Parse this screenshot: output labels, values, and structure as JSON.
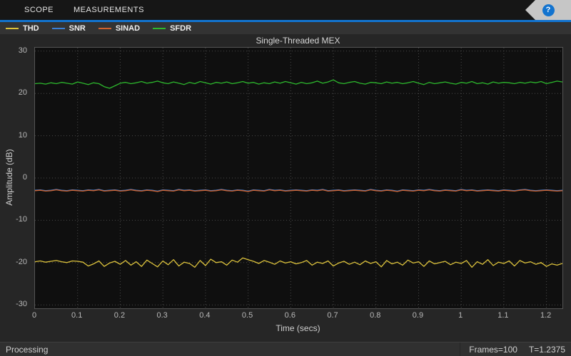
{
  "toolbar": {
    "tabs": [
      {
        "label": "SCOPE"
      },
      {
        "label": "MEASUREMENTS"
      }
    ],
    "help_label": "?",
    "accent_color": "#1273cf"
  },
  "legend": {
    "items": [
      {
        "label": "THD",
        "color": "#dcc23c"
      },
      {
        "label": "SNR",
        "color": "#3a7fd5"
      },
      {
        "label": "SINAD",
        "color": "#d0622e"
      },
      {
        "label": "SFDR",
        "color": "#2db82d"
      }
    ]
  },
  "statusbar": {
    "left": "Processing",
    "frames": "Frames=100",
    "time": "T=1.2375"
  },
  "chart_data": {
    "type": "line",
    "title": "Single-Threaded MEX",
    "xlabel": "Time (secs)",
    "ylabel": "Amplitude (dB)",
    "xlim": [
      0,
      1.2375
    ],
    "ylim": [
      -30.8,
      30.8
    ],
    "xticks": [
      0,
      0.1,
      0.2,
      0.3,
      0.4,
      0.5,
      0.6,
      0.7,
      0.8,
      0.9,
      1,
      1.1,
      1.2
    ],
    "xtick_labels": [
      "0",
      "0.1",
      "0.2",
      "0.3",
      "0.4",
      "0.5",
      "0.6",
      "0.7",
      "0.8",
      "0.9",
      "1",
      "1.1",
      "1.2"
    ],
    "yticks": [
      -30,
      -20,
      -10,
      0,
      10,
      20,
      30
    ],
    "ytick_labels": [
      "-30",
      "-20",
      "-10",
      "0",
      "10",
      "20",
      "30"
    ],
    "grid": true,
    "x_start": 0,
    "x_step": 0.0125,
    "series": [
      {
        "name": "SNR",
        "color": "#3a7fd5",
        "values": [
          -2.9,
          -2.8,
          -3.0,
          -2.9,
          -2.7,
          -2.9,
          -3.0,
          -2.8,
          -2.9,
          -3.0,
          -2.8,
          -2.9,
          -2.7,
          -3.0,
          -2.9,
          -2.8,
          -3.0,
          -2.9,
          -2.7,
          -2.9,
          -3.0,
          -2.8,
          -2.9,
          -3.1,
          -2.8,
          -2.9,
          -3.0,
          -2.7,
          -2.9,
          -2.8,
          -3.0,
          -2.9,
          -2.8,
          -3.0,
          -2.9,
          -2.7,
          -2.9,
          -3.0,
          -2.8,
          -2.9,
          -3.1,
          -2.8,
          -2.9,
          -3.0,
          -2.7,
          -2.9,
          -2.8,
          -3.0,
          -2.9,
          -2.8,
          -2.9,
          -3.0,
          -2.8,
          -2.9,
          -2.7,
          -3.0,
          -2.9,
          -2.8,
          -3.0,
          -2.9,
          -2.8,
          -2.9,
          -3.0,
          -2.7,
          -2.9,
          -3.0,
          -2.8,
          -2.9,
          -3.1,
          -2.8,
          -2.9,
          -3.0,
          -2.8,
          -2.9,
          -2.7,
          -2.9,
          -3.0,
          -2.8,
          -2.9,
          -3.0,
          -2.7,
          -2.9,
          -2.8,
          -3.0,
          -2.9,
          -2.8,
          -2.9,
          -3.0,
          -2.8,
          -2.9,
          -3.0,
          -2.8,
          -2.7,
          -2.9,
          -3.0,
          -2.9,
          -2.8,
          -2.9,
          -3.0,
          -2.9
        ]
      },
      {
        "name": "SINAD",
        "color": "#d0622e",
        "values": [
          -3.0,
          -2.9,
          -3.1,
          -3.0,
          -2.8,
          -3.0,
          -3.1,
          -2.9,
          -3.0,
          -3.1,
          -2.9,
          -3.0,
          -2.8,
          -3.1,
          -3.0,
          -2.9,
          -3.1,
          -3.0,
          -2.8,
          -3.0,
          -3.1,
          -2.9,
          -3.0,
          -3.2,
          -2.9,
          -3.0,
          -3.1,
          -2.8,
          -3.0,
          -2.9,
          -3.1,
          -3.0,
          -2.9,
          -3.1,
          -3.0,
          -2.8,
          -3.0,
          -3.1,
          -2.9,
          -3.0,
          -3.2,
          -2.9,
          -3.0,
          -3.1,
          -2.8,
          -3.0,
          -2.9,
          -3.1,
          -3.0,
          -2.9,
          -3.0,
          -3.1,
          -2.9,
          -3.0,
          -2.8,
          -3.1,
          -3.0,
          -2.9,
          -3.1,
          -3.0,
          -2.9,
          -3.0,
          -3.1,
          -2.8,
          -3.0,
          -3.1,
          -2.9,
          -3.0,
          -3.2,
          -2.9,
          -3.0,
          -3.1,
          -2.9,
          -3.0,
          -2.8,
          -3.0,
          -3.1,
          -2.9,
          -3.0,
          -3.1,
          -2.8,
          -3.0,
          -2.9,
          -3.1,
          -3.0,
          -2.9,
          -3.0,
          -3.1,
          -2.9,
          -3.0,
          -3.1,
          -2.9,
          -2.8,
          -3.0,
          -3.1,
          -3.0,
          -2.9,
          -3.0,
          -3.1,
          -3.0
        ]
      },
      {
        "name": "THD",
        "color": "#dcc23c",
        "values": [
          -19.8,
          -19.6,
          -19.9,
          -19.7,
          -19.5,
          -19.8,
          -20.0,
          -19.6,
          -19.7,
          -19.9,
          -20.8,
          -20.3,
          -19.6,
          -20.9,
          -20.1,
          -19.7,
          -20.4,
          -19.5,
          -20.6,
          -19.8,
          -20.9,
          -19.4,
          -20.2,
          -21.0,
          -19.6,
          -20.5,
          -19.3,
          -20.8,
          -19.9,
          -20.2,
          -21.1,
          -19.5,
          -20.7,
          -19.2,
          -20.0,
          -19.8,
          -20.6,
          -19.4,
          -19.9,
          -18.9,
          -19.3,
          -19.7,
          -20.2,
          -19.5,
          -19.9,
          -20.4,
          -19.6,
          -20.1,
          -19.8,
          -20.3,
          -20.0,
          -19.5,
          -20.6,
          -19.9,
          -20.2,
          -19.6,
          -20.8,
          -20.1,
          -19.7,
          -20.4,
          -19.9,
          -20.5,
          -19.6,
          -20.2,
          -19.8,
          -21.0,
          -19.5,
          -20.3,
          -19.9,
          -20.6,
          -19.4,
          -20.1,
          -19.8,
          -20.9,
          -19.6,
          -20.3,
          -20.0,
          -19.7,
          -20.5,
          -19.9,
          -20.2,
          -19.5,
          -21.1,
          -19.8,
          -20.4,
          -19.3,
          -20.7,
          -19.9,
          -20.2,
          -19.6,
          -20.8,
          -19.5,
          -20.1,
          -19.8,
          -20.4,
          -20.0,
          -20.9,
          -20.3,
          -20.6,
          -20.2
        ]
      },
      {
        "name": "SFDR",
        "color": "#2db82d",
        "values": [
          22.3,
          22.4,
          22.2,
          22.5,
          22.3,
          22.6,
          22.4,
          22.2,
          22.7,
          22.4,
          22.1,
          22.5,
          22.3,
          21.6,
          21.2,
          21.8,
          22.4,
          22.6,
          22.3,
          22.5,
          22.8,
          22.4,
          22.6,
          22.9,
          22.5,
          22.3,
          22.7,
          22.4,
          22.1,
          22.6,
          22.3,
          22.8,
          22.5,
          22.2,
          22.6,
          22.4,
          22.7,
          22.3,
          22.5,
          22.8,
          22.4,
          22.6,
          22.2,
          22.5,
          22.3,
          22.7,
          22.4,
          22.8,
          22.5,
          22.2,
          22.6,
          22.3,
          22.5,
          22.9,
          22.4,
          22.7,
          23.2,
          22.5,
          22.3,
          22.6,
          22.8,
          22.4,
          22.2,
          22.6,
          22.5,
          22.3,
          22.7,
          22.4,
          22.6,
          22.3,
          22.5,
          22.8,
          22.4,
          22.1,
          22.6,
          22.3,
          22.5,
          22.7,
          22.4,
          22.2,
          22.6,
          22.4,
          22.8,
          22.3,
          22.5,
          22.2,
          22.7,
          22.4,
          22.6,
          22.5,
          22.3,
          22.6,
          22.4,
          22.7,
          22.5,
          22.8,
          22.3,
          22.6,
          22.9,
          22.7
        ]
      }
    ]
  }
}
